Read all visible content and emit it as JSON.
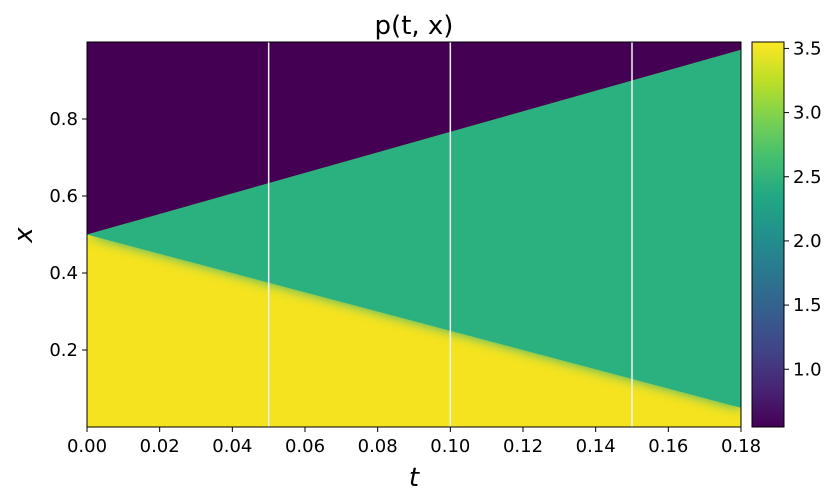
{
  "chart_data": {
    "type": "heatmap",
    "title": "p(t, x)",
    "xlabel": "t",
    "ylabel": "x",
    "xlim": [
      0.0,
      0.18
    ],
    "ylim": [
      0.0,
      1.0
    ],
    "xticks": [
      "0.00",
      "0.02",
      "0.04",
      "0.06",
      "0.08",
      "0.10",
      "0.12",
      "0.14",
      "0.16",
      "0.18"
    ],
    "yticks": [
      "0.2",
      "0.4",
      "0.6",
      "0.8"
    ],
    "colorbar": {
      "vmin": 0.55,
      "vmax": 3.55,
      "colormap": "viridis",
      "ticks": [
        "1.0",
        "1.5",
        "2.0",
        "2.5",
        "3.0",
        "3.5"
      ]
    },
    "regions": {
      "high_state_value": 3.5,
      "fan_state_value": 2.45,
      "low_state_value": 0.55,
      "lower_boundary": {
        "t": [
          0.0,
          0.18
        ],
        "x": [
          0.5,
          0.05
        ]
      },
      "upper_boundary": {
        "t": [
          0.0,
          0.18
        ],
        "x": [
          0.5,
          0.98
        ]
      }
    },
    "vertical_lines_t": [
      0.05,
      0.1,
      0.15
    ],
    "vertical_line_color": "#f2f2f2"
  }
}
